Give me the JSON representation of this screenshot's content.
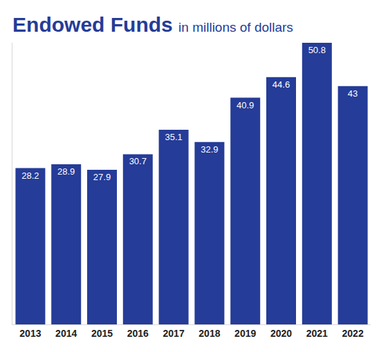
{
  "chart_data": {
    "type": "bar",
    "title": "Endowed Funds",
    "subtitle": "in millions of dollars",
    "categories": [
      "2013",
      "2014",
      "2015",
      "2016",
      "2017",
      "2018",
      "2019",
      "2020",
      "2021",
      "2022"
    ],
    "values": [
      28.2,
      28.9,
      27.9,
      30.7,
      35.1,
      32.9,
      40.9,
      44.6,
      50.8,
      43
    ],
    "color": "#253c98",
    "ylim": [
      0,
      50.8
    ],
    "yticks": [],
    "grid": false,
    "data_labels": true,
    "tick_labels": "x"
  }
}
